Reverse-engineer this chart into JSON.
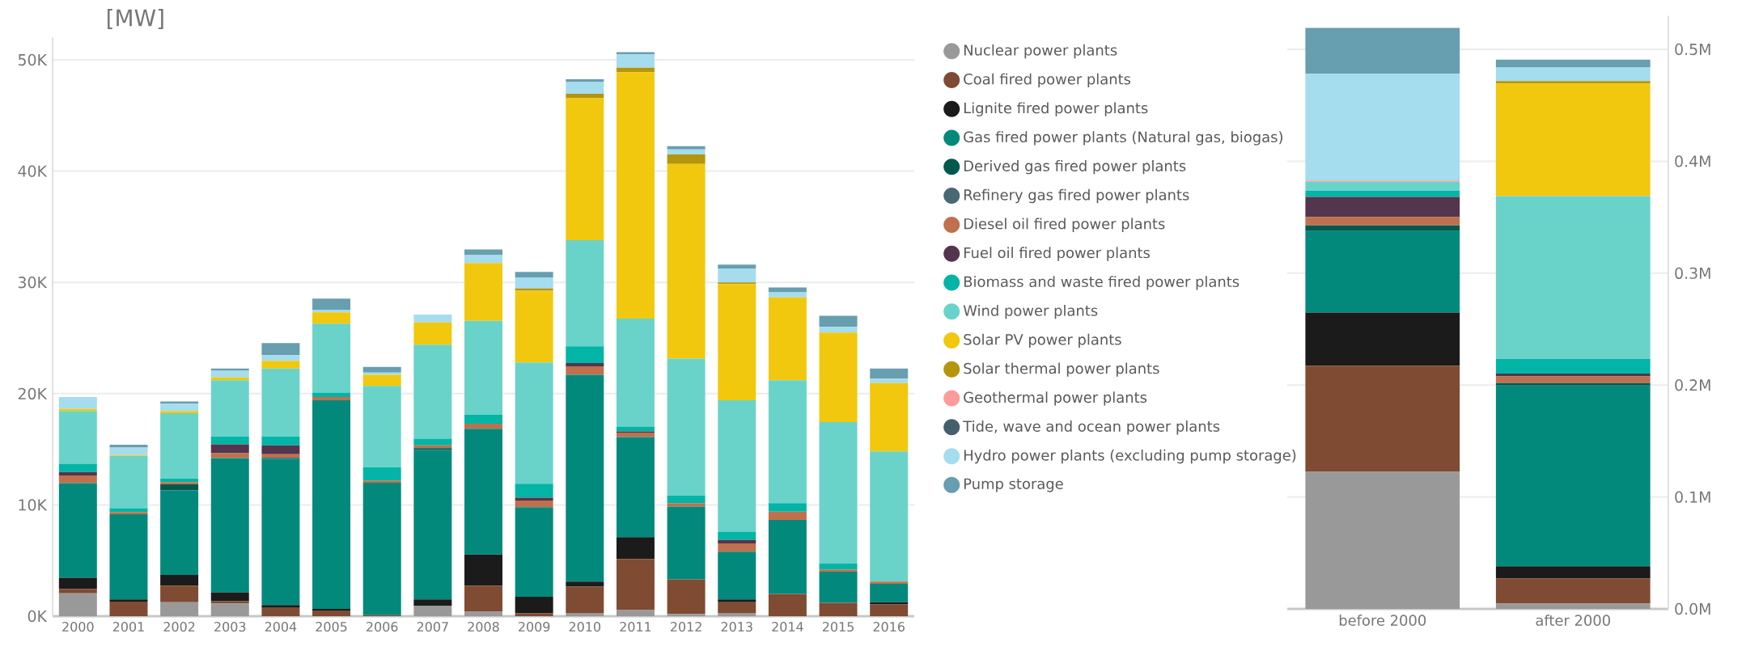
{
  "chart_data": [
    {
      "type": "bar",
      "stacked": true,
      "ylabel": "[MW]",
      "grid": "y",
      "legend": "right",
      "categories": [
        "2000",
        "2001",
        "2002",
        "2003",
        "2004",
        "2005",
        "2006",
        "2007",
        "2008",
        "2009",
        "2010",
        "2011",
        "2012",
        "2013",
        "2014",
        "2015",
        "2016"
      ],
      "ylim": [
        0,
        52000
      ],
      "yticks": [
        {
          "value": 0,
          "label": "0K"
        },
        {
          "value": 10000,
          "label": "10K"
        },
        {
          "value": 20000,
          "label": "20K"
        },
        {
          "value": 30000,
          "label": "30K"
        },
        {
          "value": 40000,
          "label": "40K"
        },
        {
          "value": 50000,
          "label": "50K"
        }
      ],
      "series": [
        {
          "name": "Nuclear power plants",
          "color": "#999999",
          "values": [
            2050,
            0,
            1250,
            1150,
            0,
            0,
            0,
            950,
            400,
            0,
            300,
            550,
            200,
            300,
            0,
            0,
            0
          ]
        },
        {
          "name": "Coal fired power plants",
          "color": "#7f4b33",
          "values": [
            400,
            1300,
            1500,
            200,
            750,
            500,
            100,
            0,
            2350,
            250,
            2350,
            4600,
            3100,
            950,
            2000,
            1200,
            1050
          ]
        },
        {
          "name": "Lignite fired power plants",
          "color": "#1b1b1b",
          "values": [
            1000,
            200,
            950,
            800,
            250,
            150,
            0,
            550,
            2800,
            1500,
            450,
            1950,
            0,
            250,
            0,
            0,
            200
          ]
        },
        {
          "name": "Gas fired power plants (Natural gas, biogas)",
          "color": "#02897c",
          "values": [
            8500,
            7650,
            7600,
            12050,
            13150,
            18750,
            11900,
            13450,
            11300,
            8050,
            18600,
            9000,
            6550,
            4300,
            6650,
            2800,
            1650
          ]
        },
        {
          "name": "Derived gas fired power plants",
          "color": "#00594f",
          "values": [
            0,
            0,
            550,
            0,
            0,
            0,
            0,
            150,
            0,
            0,
            0,
            0,
            0,
            0,
            0,
            0,
            0
          ]
        },
        {
          "name": "Refinery gas fired power plants",
          "color": "#486874",
          "values": [
            0,
            0,
            0,
            0,
            100,
            0,
            0,
            0,
            0,
            0,
            0,
            0,
            0,
            0,
            0,
            0,
            0
          ]
        },
        {
          "name": "Diesel oil fired power plants",
          "color": "#c0704d",
          "values": [
            700,
            200,
            200,
            450,
            300,
            300,
            200,
            250,
            450,
            600,
            750,
            400,
            300,
            750,
            750,
            200,
            200
          ]
        },
        {
          "name": "Fuel oil fired power plants",
          "color": "#53354d",
          "values": [
            300,
            0,
            0,
            800,
            800,
            0,
            0,
            0,
            0,
            250,
            300,
            100,
            0,
            300,
            0,
            0,
            0
          ]
        },
        {
          "name": "Biomass and waste fired power plants",
          "color": "#02b5a6",
          "values": [
            750,
            350,
            300,
            700,
            800,
            400,
            1200,
            600,
            800,
            1250,
            1500,
            450,
            700,
            750,
            750,
            550,
            0
          ]
        },
        {
          "name": "Wind power plants",
          "color": "#69d3c9",
          "values": [
            4750,
            4700,
            5900,
            5050,
            6100,
            6200,
            7300,
            8450,
            8450,
            10900,
            9550,
            9700,
            12300,
            11800,
            11050,
            12700,
            11700
          ]
        },
        {
          "name": "Solar PV power plants",
          "color": "#f1c80e",
          "values": [
            200,
            100,
            200,
            250,
            700,
            1000,
            1000,
            2000,
            5200,
            6450,
            12750,
            22150,
            17500,
            10450,
            7450,
            8050,
            6150
          ]
        },
        {
          "name": "Solar thermal power plants",
          "color": "#b5950b",
          "values": [
            0,
            0,
            0,
            0,
            0,
            0,
            0,
            0,
            0,
            200,
            400,
            400,
            850,
            150,
            0,
            0,
            0
          ]
        },
        {
          "name": "Geothermal power plants",
          "color": "#fd9a9a",
          "values": [
            0,
            0,
            0,
            0,
            0,
            0,
            0,
            0,
            0,
            0,
            0,
            0,
            0,
            0,
            0,
            0,
            0
          ]
        },
        {
          "name": "Tide, wave and ocean power plants",
          "color": "#455f6b",
          "values": [
            0,
            0,
            0,
            0,
            0,
            0,
            0,
            0,
            0,
            0,
            0,
            0,
            0,
            0,
            0,
            0,
            0
          ]
        },
        {
          "name": "Hydro power plants (excluding pump storage)",
          "color": "#a5dcee",
          "values": [
            1050,
            650,
            650,
            600,
            500,
            200,
            200,
            700,
            700,
            1000,
            1050,
            1200,
            450,
            1250,
            450,
            500,
            400
          ]
        },
        {
          "name": "Pump storage",
          "color": "#679eb0",
          "values": [
            0,
            250,
            200,
            200,
            1100,
            1050,
            500,
            0,
            500,
            500,
            250,
            200,
            300,
            350,
            450,
            1000,
            900
          ]
        }
      ]
    },
    {
      "type": "bar",
      "stacked": true,
      "grid": "y",
      "categories": [
        "before 2000",
        "after 2000"
      ],
      "ylim": [
        0,
        530000
      ],
      "yticks": [
        {
          "value": 0,
          "label": "0.0M"
        },
        {
          "value": 100000,
          "label": "0.1M"
        },
        {
          "value": 200000,
          "label": "0.2M"
        },
        {
          "value": 300000,
          "label": "0.3M"
        },
        {
          "value": 400000,
          "label": "0.4M"
        },
        {
          "value": 500000,
          "label": "0.5M"
        }
      ],
      "series": [
        {
          "color": "#999999",
          "values": [
            122400,
            4900
          ]
        },
        {
          "color": "#7f4b33",
          "values": [
            95000,
            22400
          ]
        },
        {
          "color": "#1b1b1b",
          "values": [
            47400,
            10800
          ]
        },
        {
          "color": "#02897c",
          "values": [
            72800,
            161600
          ]
        },
        {
          "color": "#00594f",
          "values": [
            5000,
            2000
          ]
        },
        {
          "color": "#486874",
          "values": [
            0,
            0
          ]
        },
        {
          "color": "#c0704d",
          "values": [
            7500,
            6000
          ]
        },
        {
          "color": "#53354d",
          "values": [
            18000,
            2500
          ]
        },
        {
          "color": "#02b5a6",
          "values": [
            5600,
            13100
          ]
        },
        {
          "color": "#69d3c9",
          "values": [
            8000,
            145500
          ]
        },
        {
          "color": "#f1c80e",
          "values": [
            0,
            100700
          ]
        },
        {
          "color": "#b5950b",
          "values": [
            0,
            2200
          ]
        },
        {
          "color": "#fd9a9a",
          "values": [
            1000,
            0
          ]
        },
        {
          "color": "#455f6b",
          "values": [
            0,
            0
          ]
        },
        {
          "color": "#a5dcee",
          "values": [
            95500,
            12000
          ]
        },
        {
          "color": "#679eb0",
          "values": [
            41000,
            7100
          ]
        }
      ]
    }
  ]
}
